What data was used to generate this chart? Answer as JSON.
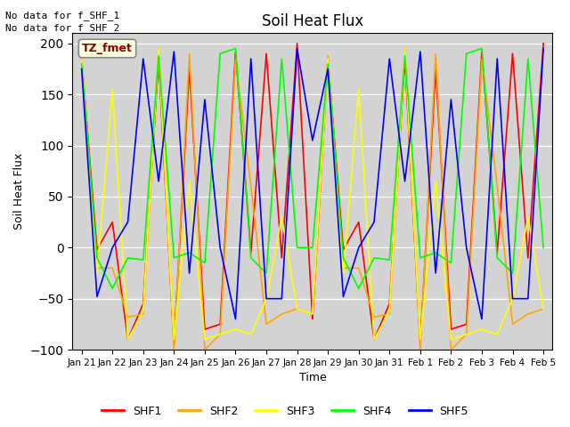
{
  "title": "Soil Heat Flux",
  "ylabel": "Soil Heat Flux",
  "xlabel": "Time",
  "ylim": [
    -100,
    210
  ],
  "yticks": [
    -100,
    -50,
    0,
    50,
    100,
    150,
    200
  ],
  "annotation_lines": [
    "No data for f_SHF_1",
    "No data for f_SHF_2"
  ],
  "box_label": "TZ_fmet",
  "bg_color": "#d3d3d3",
  "x_labels": [
    "Jan 21",
    "Jan 22",
    "Jan 23",
    "Jan 24",
    "Jan 25",
    "Jan 26",
    "Jan 27",
    "Jan 28",
    "Jan 29",
    "Jan 30",
    "Jan 31",
    "Feb 1",
    "Feb 2",
    "Feb 3",
    "Feb 4",
    "Feb 5"
  ],
  "series": {
    "SHF1": {
      "color": "red",
      "x": [
        0,
        0.5,
        1,
        1.5,
        2,
        2.5,
        3,
        3.5,
        4,
        4.5,
        5,
        5.5,
        6,
        6.5,
        7,
        7.5,
        8,
        8.5,
        9,
        9.5,
        10,
        10.5,
        11,
        11.5,
        12,
        12.5,
        13,
        13.5,
        14,
        14.5,
        15
      ],
      "y": [
        185,
        -2,
        25,
        -90,
        -55,
        185,
        -95,
        175,
        -80,
        -75,
        192,
        -5,
        190,
        -10,
        200,
        -70,
        185,
        -2,
        25,
        -90,
        -55,
        185,
        -95,
        175,
        -80,
        -75,
        192,
        -5,
        190,
        -10,
        200
      ]
    },
    "SHF2": {
      "color": "orange",
      "x": [
        0,
        0.5,
        1,
        1.5,
        2,
        2.5,
        3,
        3.5,
        4,
        4.5,
        5,
        5.5,
        6,
        6.5,
        7,
        7.5,
        8,
        8.5,
        9,
        9.5,
        10,
        10.5,
        11,
        11.5,
        12,
        12.5,
        13,
        13.5,
        14,
        14.5,
        15
      ],
      "y": [
        188,
        -20,
        -20,
        -68,
        -65,
        195,
        -100,
        190,
        -100,
        -85,
        185,
        60,
        -75,
        -65,
        -60,
        -65,
        188,
        -20,
        -20,
        -68,
        -65,
        195,
        -100,
        190,
        -100,
        -85,
        185,
        60,
        -75,
        -65,
        -60
      ]
    },
    "SHF3": {
      "color": "yellow",
      "x": [
        0,
        0.5,
        1,
        1.5,
        2,
        2.5,
        3,
        3.5,
        4,
        4.5,
        5,
        5.5,
        6,
        6.5,
        7,
        7.5,
        8,
        8.5,
        9,
        9.5,
        10,
        10.5,
        11,
        11.5,
        12,
        12.5,
        13,
        13.5,
        14,
        14.5,
        15
      ],
      "y": [
        185,
        -25,
        155,
        -90,
        -62,
        195,
        -90,
        65,
        -90,
        -85,
        -80,
        -85,
        -50,
        30,
        -60,
        -65,
        185,
        -25,
        155,
        -90,
        -62,
        195,
        -90,
        65,
        -90,
        -85,
        -80,
        -85,
        -50,
        30,
        -60
      ]
    },
    "SHF4": {
      "color": "lime",
      "x": [
        0,
        0.5,
        1,
        1.5,
        2,
        2.5,
        3,
        3.5,
        4,
        4.5,
        5,
        5.5,
        6,
        6.5,
        7,
        7.5,
        8,
        8.5,
        9,
        9.5,
        10,
        10.5,
        11,
        11.5,
        12,
        12.5,
        13,
        13.5,
        14,
        14.5,
        15
      ],
      "y": [
        180,
        -10,
        -40,
        -10,
        -12,
        188,
        -10,
        -5,
        -15,
        190,
        195,
        -10,
        -25,
        185,
        0,
        0,
        180,
        -10,
        -40,
        -10,
        -12,
        188,
        -10,
        -5,
        -15,
        190,
        195,
        -10,
        -25,
        185,
        0
      ]
    },
    "SHF5": {
      "color": "blue",
      "x": [
        0,
        0.5,
        1,
        1.5,
        2,
        2.5,
        3,
        3.5,
        4,
        4.5,
        5,
        5.5,
        6,
        6.5,
        7,
        7.5,
        8,
        8.5,
        9,
        9.5,
        10,
        10.5,
        11,
        11.5,
        12,
        12.5,
        13,
        13.5,
        14,
        14.5,
        15
      ],
      "y": [
        175,
        -48,
        0,
        25,
        185,
        65,
        192,
        -25,
        145,
        0,
        -70,
        185,
        -50,
        -50,
        195,
        105,
        175,
        -48,
        0,
        25,
        185,
        65,
        192,
        -25,
        145,
        0,
        -70,
        185,
        -50,
        -50,
        195
      ]
    }
  }
}
